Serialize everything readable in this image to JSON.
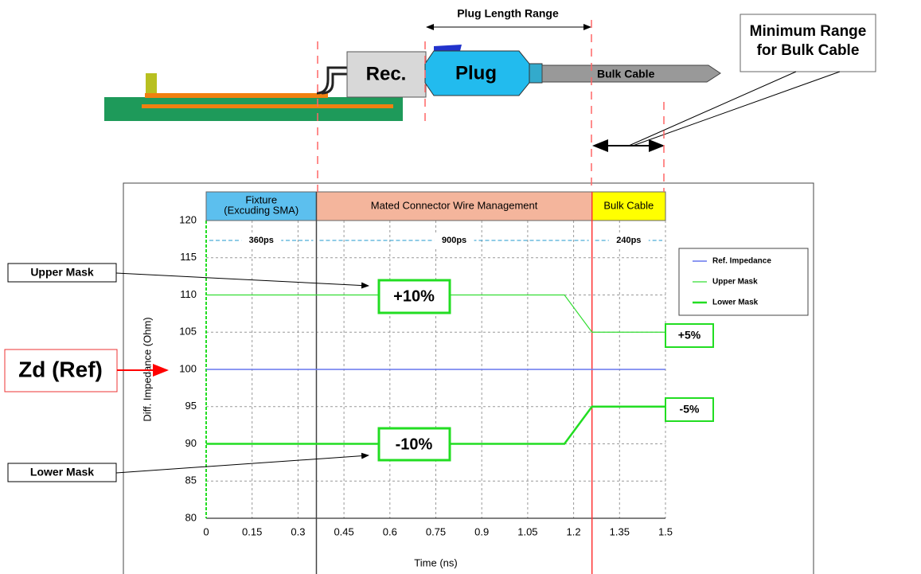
{
  "chart_data": {
    "type": "line",
    "x_label": "Time (ns)",
    "y_label": "Diff. Impedance (Ohm)",
    "x": [
      0,
      1.17,
      1.26,
      1.5
    ],
    "series": [
      {
        "name": "Ref. Impedance",
        "color": "#6677ee",
        "width": 1.5,
        "values": [
          100,
          100,
          100,
          100
        ]
      },
      {
        "name": "Upper Mask",
        "color": "#33dd33",
        "width": 1.2,
        "values": [
          110,
          110,
          105,
          105
        ]
      },
      {
        "name": "Lower Mask",
        "color": "#22dd22",
        "width": 2.5,
        "values": [
          90,
          90,
          95,
          95
        ]
      }
    ],
    "xlim": [
      0,
      1.5
    ],
    "ylim": [
      80,
      120
    ],
    "xticks": [
      0,
      0.15,
      0.3,
      0.45,
      0.6,
      0.75,
      0.9,
      1.05,
      1.2,
      1.35,
      1.5
    ],
    "yticks": [
      80,
      85,
      90,
      95,
      100,
      105,
      110,
      115,
      120
    ],
    "grid": true,
    "legend": "right",
    "regions": [
      {
        "lines": [
          "Fixture",
          "(Excuding SMA)"
        ],
        "duration": "360ps",
        "start": 0,
        "end": 0.36,
        "color": "#5cbfee"
      },
      {
        "lines": [
          "Mated Connector  Wire Management"
        ],
        "duration": "900ps",
        "start": 0.36,
        "end": 1.26,
        "color": "#f4b59c"
      },
      {
        "lines": [
          "Bulk Cable"
        ],
        "duration": "240ps",
        "start": 1.26,
        "end": 1.5,
        "color": "#ffff00"
      }
    ],
    "callouts": {
      "upper": "Upper Mask",
      "lower": "Lower Mask",
      "ref": "Zd (Ref)",
      "up10": "+10%",
      "down10": "-10%",
      "up5": "+5%",
      "down5": "-5%"
    }
  },
  "diagram": {
    "rec": "Rec.",
    "plug": "Plug",
    "cable": "Bulk Cable",
    "plug_range": "Plug Length Range",
    "min_range": [
      "Minimum Range",
      "for Bulk Cable"
    ]
  }
}
